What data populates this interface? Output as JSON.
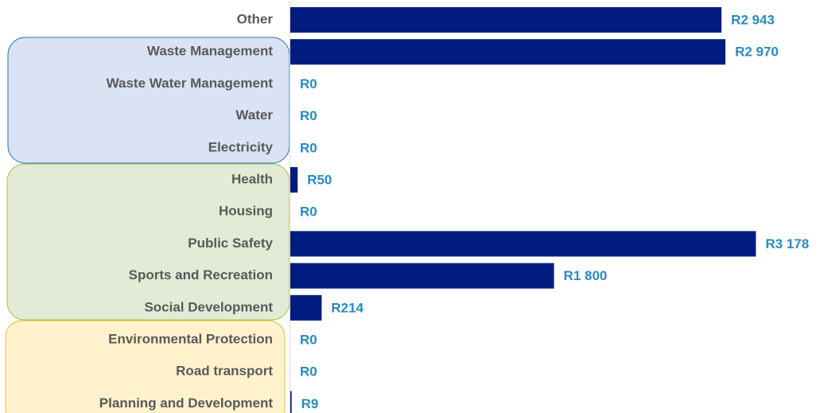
{
  "chart_data": {
    "type": "bar",
    "orientation": "horizontal",
    "categories": [
      "Other",
      "Waste Management",
      "Waste Water Management",
      "Water",
      "Electricity",
      "Health",
      "Housing",
      "Public Safety",
      "Sports and Recreation",
      "Social Development",
      "Environmental Protection",
      "Road transport",
      "Planning and Development"
    ],
    "values": [
      2943,
      2970,
      0,
      0,
      0,
      50,
      0,
      3178,
      1800,
      214,
      0,
      0,
      9
    ],
    "value_labels": [
      "R2 943",
      "R2 970",
      "R0",
      "R0",
      "R0",
      "R50",
      "R0",
      "R3 178",
      "R1 800",
      "R214",
      "R0",
      "R0",
      "R9"
    ],
    "color": "#001c80"
  }
}
